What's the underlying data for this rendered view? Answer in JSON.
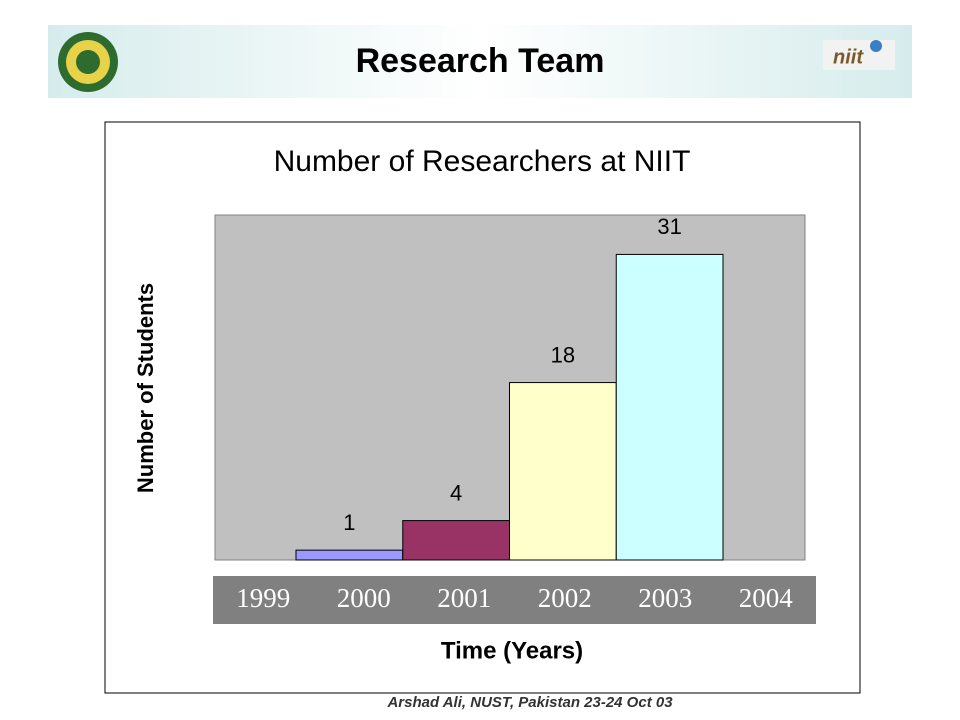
{
  "header": {
    "title": "Research Team",
    "logo_text": "niit"
  },
  "chart_data": {
    "type": "bar",
    "title": "Number of Researchers at NIIT",
    "y_label": "Number of Students",
    "x_label": "Time (Years)",
    "categories": [
      null,
      null,
      null,
      null
    ],
    "values": [
      1,
      4,
      18,
      31
    ],
    "colors": [
      "#9999ff",
      "#993366",
      "#ffffcc",
      "#ccffff"
    ],
    "ylim": [
      0,
      35
    ],
    "x_labels": [
      "1999",
      "2000",
      "2001",
      "2002",
      "2003",
      "2004"
    ],
    "plot_background": "#c0c0c0"
  },
  "footer": {
    "text": "Arshad Ali, NUST, Pakistan 23-24 Oct 03"
  }
}
